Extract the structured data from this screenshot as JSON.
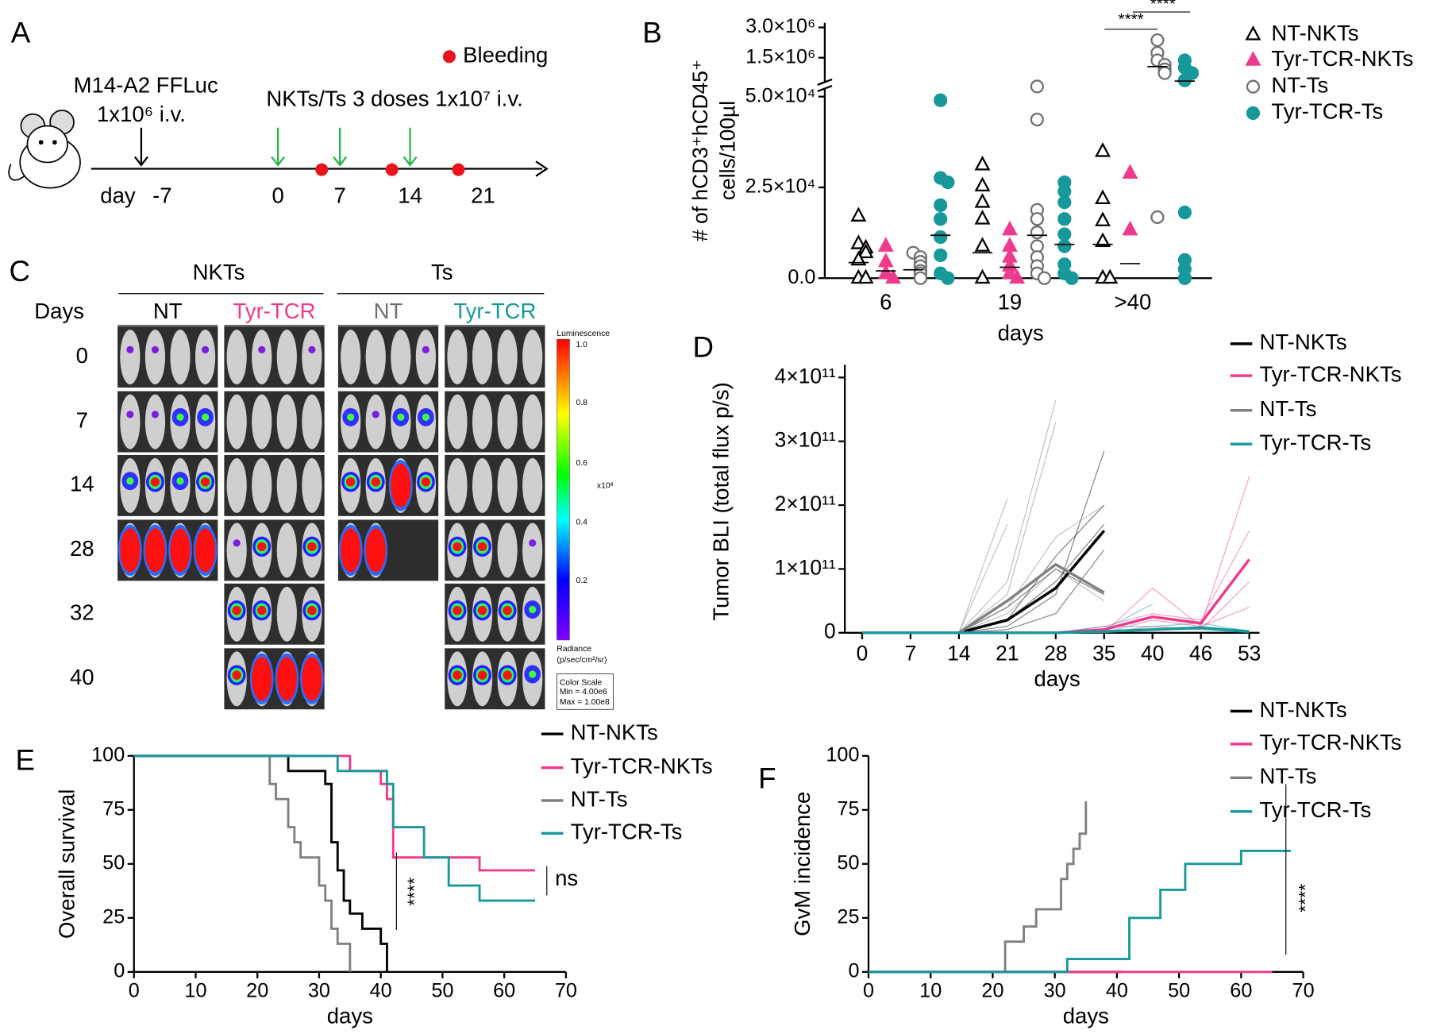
{
  "panel_a": {
    "label": "A",
    "injection": "M14-A2 FFLuc",
    "injection_dose": "1x10⁶ i.v.",
    "bleeding_legend": "Bleeding",
    "treatment": "NKTs/Ts 3 doses 1x10⁷ i.v.",
    "day_label": "day",
    "days": [
      "-7",
      "0",
      "7",
      "14",
      "21"
    ]
  },
  "panel_c": {
    "label": "C",
    "groups": [
      "NKTs",
      "Ts"
    ],
    "columns": [
      "NT",
      "Tyr-TCR",
      "NT",
      "Tyr-TCR"
    ],
    "days_title": "Days",
    "days": [
      "0",
      "7",
      "14",
      "28",
      "32",
      "40"
    ],
    "colorbar": {
      "title": "Luminescence",
      "ticks": [
        "1.0",
        "0.8",
        "0.6",
        "0.4",
        "0.2"
      ],
      "exponent": "x10⁸",
      "unit_title": "Radiance",
      "unit": "(p/sec/cm²/sr)",
      "scale_box": [
        "Color Scale",
        "Min = 4.00e6",
        "Max = 1.00e8"
      ]
    }
  },
  "chart_data": [
    {
      "label": "B",
      "type": "scatter",
      "ylabel": [
        "# of hCD3⁺hCD45⁺",
        "cells/100µl"
      ],
      "xlabel": "days",
      "categories": [
        "6",
        "19",
        ">40"
      ],
      "ylim": [
        0,
        55000
      ],
      "yticks": [
        {
          "value": 0,
          "label": "0.0"
        },
        {
          "value": 25000,
          "label": "2.5×10⁴"
        },
        {
          "value": 50000,
          "label": "5.0×10⁴"
        }
      ],
      "ylim_upper": [
        200000,
        3000000
      ],
      "yticks_upper": [
        {
          "value": 1500000,
          "label": "1.5×10⁶"
        },
        {
          "value": 3000000,
          "label": "3.0×10⁶"
        }
      ],
      "significance": [
        "****",
        "****"
      ],
      "series": [
        {
          "name": "NT-NKTs",
          "color": "#000000",
          "marker": "triangle",
          "filled": false,
          "values": [
            [
              17100,
              9500,
              8300,
              7000,
              5000,
              0,
              0
            ],
            [
              31200,
              25400,
              20900,
              16300,
              8800,
              0
            ],
            [
              34900,
              21900,
              15800,
              10100,
              0,
              0
            ]
          ],
          "means": [
            4300,
            7000,
            9300
          ]
        },
        {
          "name": "Tyr-TCR-NKTs",
          "color": "#ee3a8c",
          "marker": "triangle",
          "filled": true,
          "values": [
            [
              8800,
              4500,
              1300,
              0
            ],
            [
              13300,
              8800,
              5800,
              3300,
              1300,
              0
            ],
            [
              28900,
              13300
            ]
          ],
          "means": [
            2000,
            3000,
            4000
          ]
        },
        {
          "name": "NT-Ts",
          "color": "#707070",
          "marker": "circle",
          "filled": false,
          "values": [
            [
              7000,
              5800,
              4500,
              3300,
              2000,
              1300,
              0
            ],
            [
              52800,
              43700,
              18800,
              16300,
              12600,
              8800,
              5800,
              3300,
              1300,
              0
            ],
            [
              2370000,
              1740000,
              1370000,
              1150000,
              920000,
              740000,
              16800
            ]
          ],
          "means": [
            2300,
            11800,
            1060000
          ]
        },
        {
          "name": "Tyr-TCR-Ts",
          "color": "#17989a",
          "marker": "circle",
          "filled": true,
          "values": [
            [
              49000,
              27600,
              26400,
              20100,
              16300,
              11300,
              6300,
              1300,
              0
            ],
            [
              26400,
              23900,
              20900,
              16300,
              12100,
              8800,
              3800,
              1300,
              0
            ],
            [
              1370000,
              1010000,
              740000,
              380000,
              18100,
              5000,
              2500,
              0
            ]
          ],
          "means": [
            11800,
            9300,
            340000
          ]
        }
      ]
    },
    {
      "label": "D",
      "type": "line",
      "ylabel": "Tumor BLI (total flux p/s)",
      "xlabel": "days",
      "categories": [
        "0",
        "7",
        "14",
        "21",
        "28",
        "35",
        "40",
        "46",
        "53"
      ],
      "ylim": [
        0,
        420000000000
      ],
      "yticks": [
        0,
        {
          "value": 100000000000,
          "label": "1×10¹¹"
        },
        {
          "value": 200000000000,
          "label": "2×10¹¹"
        },
        {
          "value": 300000000000,
          "label": "3×10¹¹"
        },
        {
          "value": 400000000000,
          "label": "4×10¹¹"
        }
      ],
      "series": [
        {
          "name": "NT-NKTs",
          "color": "#000000",
          "values": [
            0,
            0,
            0,
            20000000000,
            70000000000,
            160000000000,
            null,
            null,
            null
          ],
          "individuals": [
            [
              0,
              0,
              0,
              10000000000,
              60000000000,
              285000000000,
              null,
              null,
              null
            ],
            [
              0,
              0,
              0,
              20000000000,
              120000000000,
              200000000000,
              null,
              null,
              null
            ],
            [
              0,
              0,
              0,
              5000000000,
              30000000000,
              130000000000,
              null,
              null,
              null
            ],
            [
              0,
              0,
              0,
              40000000000,
              100000000000,
              60000000000,
              null,
              null,
              null
            ],
            [
              0,
              0,
              0,
              20000000000,
              80000000000,
              170000000000,
              null,
              null,
              null
            ]
          ]
        },
        {
          "name": "Tyr-TCR-NKTs",
          "color": "#ee3a8c",
          "values": [
            0,
            0,
            0,
            0,
            0,
            5000000000,
            25000000000,
            15000000000,
            115000000000
          ],
          "individuals": [
            [
              0,
              0,
              0,
              0,
              0,
              0,
              70000000000,
              10000000000,
              245000000000
            ],
            [
              0,
              0,
              0,
              0,
              0,
              10000000000,
              30000000000,
              20000000000,
              160000000000
            ],
            [
              0,
              0,
              0,
              0,
              0,
              0,
              10000000000,
              5000000000,
              80000000000
            ],
            [
              0,
              0,
              0,
              0,
              0,
              0,
              20000000000,
              10000000000,
              40000000000
            ]
          ]
        },
        {
          "name": "NT-Ts",
          "color": "#808080",
          "values": [
            0,
            0,
            0,
            50000000000,
            107000000000,
            63000000000,
            null,
            null,
            null
          ],
          "individuals": [
            [
              0,
              0,
              0,
              210000000000,
              null,
              null,
              null,
              null,
              null
            ],
            [
              0,
              0,
              0,
              80000000000,
              365000000000,
              null,
              null,
              null,
              null
            ],
            [
              0,
              0,
              0,
              60000000000,
              330000000000,
              null,
              null,
              null,
              null
            ],
            [
              0,
              0,
              0,
              40000000000,
              150000000000,
              200000000000,
              null,
              null,
              null
            ],
            [
              0,
              0,
              0,
              30000000000,
              100000000000,
              50000000000,
              null,
              null,
              null
            ],
            [
              0,
              0,
              0,
              170000000000,
              null,
              null,
              null,
              null,
              null
            ]
          ]
        },
        {
          "name": "Tyr-TCR-Ts",
          "color": "#17989a",
          "values": [
            0,
            0,
            0,
            0,
            0,
            2000000000,
            5000000000,
            8000000000,
            2000000000
          ],
          "individuals": [
            [
              0,
              0,
              0,
              0,
              0,
              5000000000,
              45000000000,
              null,
              null
            ],
            [
              0,
              0,
              0,
              0,
              0,
              10000000000,
              10000000000,
              15000000000,
              3000000000
            ],
            [
              0,
              0,
              0,
              0,
              0,
              0,
              5000000000,
              5000000000,
              0
            ]
          ]
        }
      ]
    },
    {
      "label": "E",
      "type": "step",
      "ylabel": "Overall survival",
      "xlabel": "days",
      "xlim": [
        0,
        70
      ],
      "xticks": [
        0,
        10,
        20,
        30,
        40,
        50,
        60,
        70
      ],
      "ylim": [
        0,
        100
      ],
      "yticks": [
        0,
        25,
        50,
        75,
        100
      ],
      "annotations": [
        "****",
        "ns"
      ],
      "series": [
        {
          "name": "NT-NKTs",
          "color": "#000000",
          "x": [
            0,
            25,
            31,
            32,
            33,
            34,
            35,
            37,
            40,
            41
          ],
          "values": [
            100,
            93,
            87,
            60,
            47,
            33,
            27,
            20,
            13,
            0
          ]
        },
        {
          "name": "Tyr-TCR-NKTs",
          "color": "#ee3a8c",
          "x": [
            0,
            35,
            40,
            41,
            42,
            56,
            65
          ],
          "values": [
            100,
            93,
            87,
            80,
            53,
            47,
            47
          ]
        },
        {
          "name": "NT-Ts",
          "color": "#808080",
          "x": [
            0,
            22,
            23,
            25,
            26,
            27,
            30,
            31,
            32,
            33,
            35
          ],
          "values": [
            100,
            87,
            80,
            67,
            60,
            53,
            40,
            33,
            20,
            13,
            0
          ]
        },
        {
          "name": "Tyr-TCR-Ts",
          "color": "#17989a",
          "x": [
            0,
            33,
            41,
            42,
            47,
            51,
            56,
            65
          ],
          "values": [
            100,
            93,
            87,
            67,
            53,
            40,
            33,
            33
          ]
        }
      ]
    },
    {
      "label": "F",
      "type": "step",
      "ylabel": "GvM incidence",
      "xlabel": "days",
      "xlim": [
        0,
        70
      ],
      "xticks": [
        0,
        10,
        20,
        30,
        40,
        50,
        60,
        70
      ],
      "ylim": [
        0,
        100
      ],
      "yticks": [
        0,
        25,
        50,
        75,
        100
      ],
      "annotations": [
        "****"
      ],
      "series": [
        {
          "name": "NT-NKTs",
          "color": "#000000",
          "x": [
            0,
            41
          ],
          "values": [
            0,
            0
          ]
        },
        {
          "name": "Tyr-TCR-NKTs",
          "color": "#ee3a8c",
          "x": [
            0,
            65
          ],
          "values": [
            0,
            0
          ]
        },
        {
          "name": "NT-Ts",
          "color": "#808080",
          "x": [
            0,
            22,
            25,
            27,
            31,
            32,
            33,
            34,
            35
          ],
          "values": [
            0,
            14,
            21,
            29,
            43,
            50,
            57,
            64,
            79
          ]
        },
        {
          "name": "Tyr-TCR-Ts",
          "color": "#17989a",
          "x": [
            0,
            32,
            42,
            47,
            51,
            60,
            68
          ],
          "values": [
            0,
            6,
            25,
            38,
            50,
            56,
            56
          ]
        }
      ]
    }
  ]
}
